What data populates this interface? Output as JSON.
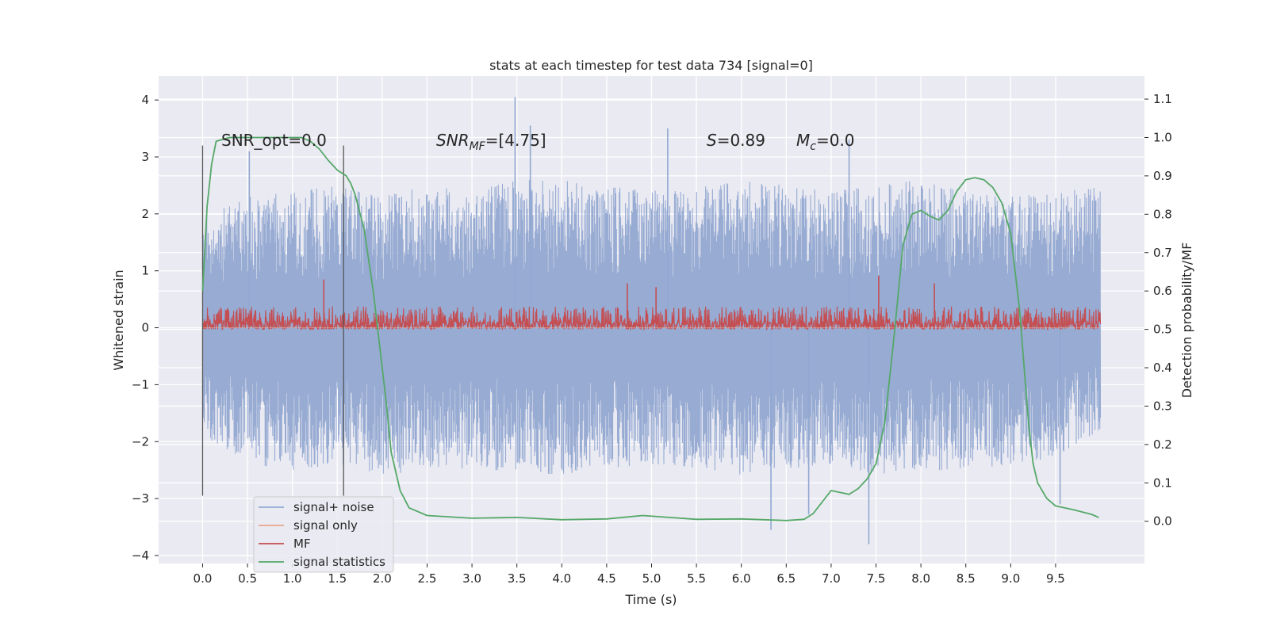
{
  "chart_data": {
    "type": "line",
    "title": "stats at each timestep for test data 734 [signal=0]",
    "xlabel": "Time (s)",
    "ylabel": "Whitened strain",
    "y2label": "Detection probability/MF",
    "xlim": [
      -0.49,
      10.49
    ],
    "ylim": [
      -4.14,
      4.42
    ],
    "y2lim": [
      -0.11,
      1.16
    ],
    "xticks": [
      "0.0",
      "0.5",
      "1.0",
      "1.5",
      "2.0",
      "2.5",
      "3.0",
      "3.5",
      "4.0",
      "4.5",
      "5.0",
      "5.5",
      "6.0",
      "6.5",
      "7.0",
      "7.5",
      "8.0",
      "8.5",
      "9.0",
      "9.5"
    ],
    "yticks": [
      "4",
      "3",
      "2",
      "1",
      "0",
      "−1",
      "−2",
      "−3",
      "−4"
    ],
    "y2ticks": [
      "1.1",
      "1.0",
      "0.9",
      "0.8",
      "0.7",
      "0.6",
      "0.5",
      "0.4",
      "0.3",
      "0.2",
      "0.1",
      "0.0"
    ],
    "grid": true,
    "legend_position": "lower-left",
    "annotations": {
      "snr_opt": "SNR_opt=0.0",
      "snr_mf_main": "SNR",
      "snr_mf_sub": "MF",
      "snr_mf_value": "=[4.75]",
      "s_main": "S",
      "s_value": "=0.89",
      "mc_main": "M",
      "mc_sub": "c",
      "mc_value": "=0.0"
    },
    "vertical_markers": {
      "x": [
        0.0,
        1.57
      ],
      "y_range": [
        -2.95,
        3.2
      ]
    },
    "series": [
      {
        "name": "signal+ noise",
        "color": "#92a8d1",
        "axis": "left",
        "x_range": [
          0.0,
          10.0
        ],
        "envelope_upper": [
          2.0,
          2.3,
          2.4,
          2.5,
          2.3,
          2.5,
          2.4,
          2.6,
          2.6,
          2.5,
          2.4,
          2.5,
          2.6,
          2.5,
          2.4,
          2.5,
          2.6,
          2.4,
          2.3,
          2.4,
          2.5
        ],
        "envelope_lower": [
          -1.9,
          -2.4,
          -2.5,
          -2.4,
          -2.6,
          -2.5,
          -2.5,
          -2.5,
          -2.6,
          -2.5,
          -2.4,
          -2.5,
          -2.6,
          -2.5,
          -2.4,
          -2.6,
          -2.5,
          -2.5,
          -2.4,
          -2.3,
          -1.8
        ],
        "peaks": [
          {
            "x": 3.48,
            "y": 4.05
          },
          {
            "x": 3.65,
            "y": 3.55
          },
          {
            "x": 5.18,
            "y": 3.5
          },
          {
            "x": 7.42,
            "y": -3.8
          },
          {
            "x": 6.33,
            "y": -3.55
          },
          {
            "x": 6.75,
            "y": -3.28
          },
          {
            "x": 0.52,
            "y": 3.1
          },
          {
            "x": 7.2,
            "y": 3.3
          },
          {
            "x": 9.55,
            "y": -3.1
          }
        ]
      },
      {
        "name": "signal only",
        "color": "#e8a58c",
        "axis": "left",
        "x": [
          0.0,
          10.0
        ],
        "y": [
          0.0,
          0.0
        ]
      },
      {
        "name": "MF",
        "color": "#c44e52",
        "axis": "right",
        "x_range": [
          0.0,
          10.0
        ],
        "baseline": 0.5,
        "typical_max": 0.56,
        "peaks": [
          {
            "x": 1.35,
            "y": 0.63
          },
          {
            "x": 4.73,
            "y": 0.62
          },
          {
            "x": 7.53,
            "y": 0.64
          },
          {
            "x": 8.15,
            "y": 0.62
          },
          {
            "x": 5.05,
            "y": 0.61
          }
        ]
      },
      {
        "name": "signal statistics",
        "color": "#55a868",
        "axis": "right",
        "x": [
          0.0,
          0.05,
          0.1,
          0.15,
          0.3,
          0.5,
          0.8,
          1.0,
          1.1,
          1.2,
          1.3,
          1.4,
          1.5,
          1.6,
          1.65,
          1.7,
          1.8,
          1.9,
          2.0,
          2.05,
          2.1,
          2.2,
          2.3,
          2.5,
          3.0,
          3.5,
          4.0,
          4.5,
          4.9,
          5.2,
          5.5,
          6.0,
          6.5,
          6.7,
          6.8,
          6.9,
          7.0,
          7.1,
          7.2,
          7.3,
          7.4,
          7.5,
          7.6,
          7.7,
          7.8,
          7.9,
          8.0,
          8.1,
          8.2,
          8.3,
          8.4,
          8.5,
          8.6,
          8.7,
          8.8,
          8.9,
          9.0,
          9.1,
          9.2,
          9.25,
          9.3,
          9.4,
          9.5,
          9.7,
          9.9,
          9.98
        ],
        "y": [
          0.6,
          0.82,
          0.93,
          0.99,
          1.0,
          1.0,
          1.0,
          1.0,
          1.0,
          0.99,
          0.97,
          0.94,
          0.915,
          0.9,
          0.88,
          0.85,
          0.76,
          0.6,
          0.4,
          0.3,
          0.18,
          0.08,
          0.035,
          0.015,
          0.008,
          0.01,
          0.004,
          0.006,
          0.015,
          0.01,
          0.005,
          0.006,
          0.002,
          0.005,
          0.02,
          0.05,
          0.08,
          0.075,
          0.07,
          0.085,
          0.11,
          0.15,
          0.26,
          0.48,
          0.72,
          0.8,
          0.81,
          0.795,
          0.785,
          0.81,
          0.86,
          0.89,
          0.895,
          0.89,
          0.87,
          0.83,
          0.75,
          0.55,
          0.25,
          0.15,
          0.1,
          0.06,
          0.04,
          0.03,
          0.018,
          0.01
        ]
      }
    ]
  }
}
